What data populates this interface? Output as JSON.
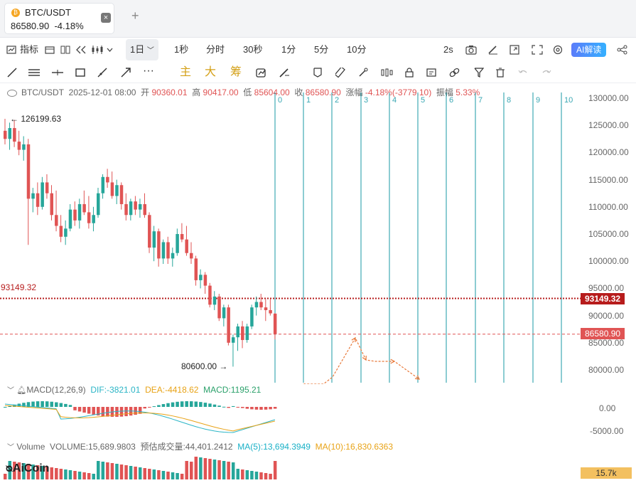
{
  "tab": {
    "symbol": "BTC/USDT",
    "price": "86580.90",
    "change": "-4.18%",
    "close_icon": "×",
    "add_icon": "+"
  },
  "toolbar1": {
    "indicators": "指标",
    "interval_selected": "1日",
    "intervals": [
      "1秒",
      "分时",
      "30秒",
      "1分",
      "5分",
      "10分"
    ],
    "refresh": "2s",
    "ai": "AI解读"
  },
  "toolbar2": {
    "labels": [
      "主",
      "大",
      "筹"
    ]
  },
  "ohlc": {
    "symbol": "BTC/USDT",
    "date": "2025-12-01 08:00",
    "open_label": "开",
    "open": "90360.01",
    "high_label": "高",
    "high": "90417.00",
    "low_label": "低",
    "low": "85604.00",
    "close_label": "收",
    "close": "86580.90",
    "chg_label": "涨幅",
    "chg": "-4.18%(-3779.10)",
    "amp_label": "振幅",
    "amp": "5.33%"
  },
  "axis_labels": [
    "130000.00",
    "125000.00",
    "120000.00",
    "115000.00",
    "110000.00",
    "105000.00",
    "100000.00",
    "95000.00",
    "90000.00",
    "85000.00",
    "80000.00"
  ],
  "annotations": {
    "high": "126199.63",
    "low": "80600.00",
    "hline": "93149.32"
  },
  "price_tags": {
    "hline": "93149.32",
    "last": "86580.90"
  },
  "fib_labels": [
    "0",
    "1",
    "2",
    "3",
    "4",
    "5",
    "6",
    "7",
    "8",
    "9",
    "10"
  ],
  "macd": {
    "title": "MACD(12,26,9)",
    "dif": "DIF:-3821.01",
    "dea": "DEA:-4418.62",
    "macd": "MACD:1195.21",
    "axis": [
      "0.00",
      "-5000.00"
    ]
  },
  "volume": {
    "title": "Volume",
    "vol": "VOLUME:15,689.9803",
    "est": "预估成交量:44,401.2412",
    "ma5": "MA(5):13,694.3949",
    "ma10": "MA(10):16,830.6363",
    "tag": "15.7k"
  },
  "logo": "AiCoin",
  "colors": {
    "up": "#26a69a",
    "down": "#e05454",
    "fib": "#1a9aa6",
    "hline": "#b71c1c",
    "arrow": "#e8793a"
  },
  "candles": [
    [
      124000,
      126199,
      121500,
      122500
    ],
    [
      122500,
      125500,
      120500,
      124500
    ],
    [
      124500,
      126000,
      121000,
      122000
    ],
    [
      122000,
      124000,
      119500,
      120500
    ],
    [
      120500,
      123000,
      118500,
      121500
    ],
    [
      121500,
      122500,
      103000,
      111500
    ],
    [
      111500,
      113500,
      109000,
      112500
    ],
    [
      112500,
      114500,
      108500,
      110000
    ],
    [
      110000,
      115500,
      109500,
      114500
    ],
    [
      114500,
      116000,
      111500,
      112500
    ],
    [
      112500,
      114000,
      107500,
      108500
    ],
    [
      108500,
      113000,
      105500,
      106500
    ],
    [
      106500,
      108500,
      103500,
      104500
    ],
    [
      104500,
      107500,
      103000,
      106000
    ],
    [
      106000,
      110500,
      105500,
      109500
    ],
    [
      109500,
      111000,
      106500,
      107500
    ],
    [
      107500,
      111500,
      106000,
      110500
    ],
    [
      110500,
      113000,
      108500,
      109000
    ],
    [
      109000,
      112000,
      106000,
      107000
    ],
    [
      107000,
      110000,
      105500,
      108500
    ],
    [
      108500,
      113500,
      108000,
      112500
    ],
    [
      112500,
      116000,
      111500,
      115500
    ],
    [
      115500,
      117000,
      113500,
      114500
    ],
    [
      114500,
      116500,
      111500,
      112000
    ],
    [
      112000,
      115000,
      110500,
      114000
    ],
    [
      114000,
      114500,
      109500,
      110500
    ],
    [
      110500,
      112500,
      107500,
      108500
    ],
    [
      108500,
      111500,
      107500,
      111000
    ],
    [
      111000,
      112000,
      108500,
      109500
    ],
    [
      109500,
      111500,
      108000,
      110500
    ],
    [
      110500,
      112500,
      108000,
      108500
    ],
    [
      108500,
      109000,
      101500,
      102500
    ],
    [
      102500,
      106500,
      100000,
      105500
    ],
    [
      105500,
      106000,
      99000,
      100500
    ],
    [
      100500,
      104000,
      99500,
      103500
    ],
    [
      103500,
      104500,
      99500,
      100500
    ],
    [
      100500,
      102500,
      99000,
      101500
    ],
    [
      101500,
      106000,
      101000,
      105000
    ],
    [
      105000,
      107000,
      103500,
      104000
    ],
    [
      104000,
      106500,
      101000,
      101500
    ],
    [
      101500,
      103500,
      99500,
      100500
    ],
    [
      100500,
      101000,
      95500,
      96500
    ],
    [
      96500,
      98500,
      95000,
      97500
    ],
    [
      97500,
      98000,
      94000,
      95500
    ],
    [
      95500,
      96000,
      91500,
      92000
    ],
    [
      92000,
      94500,
      91000,
      93500
    ],
    [
      93500,
      94000,
      89000,
      89500
    ],
    [
      89500,
      92000,
      88000,
      91500
    ],
    [
      91500,
      92000,
      84500,
      85000
    ],
    [
      85000,
      86500,
      80600,
      86000
    ],
    [
      86000,
      88500,
      83500,
      88000
    ],
    [
      88000,
      89000,
      84000,
      85500
    ],
    [
      85500,
      88500,
      85000,
      88000
    ],
    [
      88000,
      92000,
      87500,
      91500
    ],
    [
      91500,
      93500,
      90000,
      92500
    ],
    [
      92500,
      94000,
      91000,
      91500
    ],
    [
      91500,
      93000,
      89000,
      91000
    ],
    [
      91000,
      93000,
      90000,
      90400
    ],
    [
      90360,
      90417,
      85604,
      86581
    ]
  ]
}
